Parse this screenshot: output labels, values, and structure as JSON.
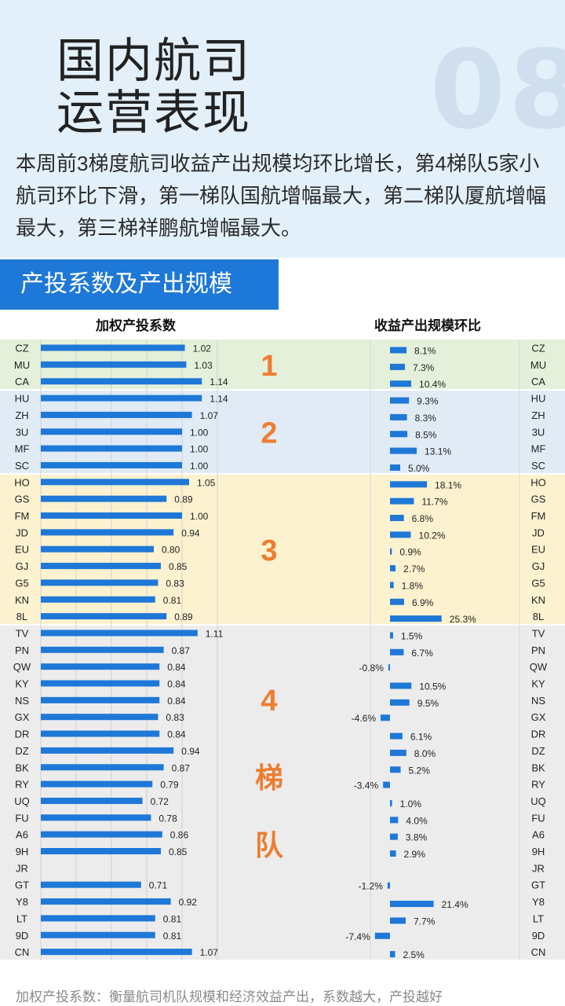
{
  "header": {
    "big_number": "08",
    "title_line1": "国内航司",
    "title_line2": "运营表现",
    "summary": "本周前3梯度航司收益产出规模均环比增长，第4梯队5家小航司环比下滑，第一梯队国航增幅最大，第二梯队厦航增幅最大，第三梯祥鹏航增幅最大。"
  },
  "section_title": "产投系数及产出规模",
  "footnote": "加权产投系数：衡量航司机队规模和经济效益产出，系数越大，产投越好",
  "colors": {
    "bar": "#1e78d7",
    "tier1_bg": "#e4f0d9",
    "tier2_bg": "#e0ebf6",
    "tier3_bg": "#fdf2d0",
    "tier4_bg": "#ececec",
    "tier_label": "#ee7d31"
  },
  "chart_data": [
    {
      "type": "bar",
      "title": "加权产投系数",
      "categories": [
        "CZ",
        "MU",
        "CA",
        "HU",
        "ZH",
        "3U",
        "MF",
        "SC",
        "HO",
        "GS",
        "FM",
        "JD",
        "EU",
        "GJ",
        "G5",
        "KN",
        "8L",
        "TV",
        "PN",
        "QW",
        "KY",
        "NS",
        "GX",
        "DR",
        "DZ",
        "BK",
        "RY",
        "UQ",
        "FU",
        "A6",
        "9H",
        "JR",
        "GT",
        "Y8",
        "LT",
        "9D",
        "CN"
      ],
      "values": [
        1.02,
        1.03,
        1.14,
        1.14,
        1.07,
        1.0,
        1.0,
        1.0,
        1.05,
        0.89,
        1.0,
        0.94,
        0.8,
        0.85,
        0.83,
        0.81,
        0.89,
        1.11,
        0.87,
        0.84,
        0.84,
        0.84,
        0.83,
        0.84,
        0.94,
        0.87,
        0.79,
        0.72,
        0.78,
        0.86,
        0.85,
        null,
        0.71,
        0.92,
        0.81,
        0.81,
        1.07
      ],
      "labels": [
        "1.02",
        "1.03",
        "1.14",
        "1.14",
        "1.07",
        "1.00",
        "1.00",
        "1.00",
        "1.05",
        "0.89",
        "1.00",
        "0.94",
        "0.80",
        "0.85",
        "0.83",
        "0.81",
        "0.89",
        "1.11",
        "0.87",
        "0.84",
        "0.84",
        "0.84",
        "0.83",
        "0.84",
        "0.94",
        "0.87",
        "0.79",
        "0.72",
        "0.78",
        "0.86",
        "0.85",
        "",
        "0.71",
        "0.92",
        "0.81",
        "0.81",
        "1.07"
      ],
      "xlim": [
        0,
        1.25
      ],
      "grid": true
    },
    {
      "type": "bar",
      "title": "收益产出规模环比",
      "categories": [
        "CZ",
        "MU",
        "CA",
        "HU",
        "ZH",
        "3U",
        "MF",
        "SC",
        "HO",
        "GS",
        "FM",
        "JD",
        "EU",
        "GJ",
        "G5",
        "KN",
        "8L",
        "TV",
        "PN",
        "QW",
        "KY",
        "NS",
        "GX",
        "DR",
        "DZ",
        "BK",
        "RY",
        "UQ",
        "FU",
        "A6",
        "9H",
        "JR",
        "GT",
        "Y8",
        "LT",
        "9D",
        "CN"
      ],
      "values": [
        8.1,
        7.3,
        10.4,
        9.3,
        8.3,
        8.5,
        13.1,
        5.0,
        18.1,
        11.7,
        6.8,
        10.2,
        0.9,
        2.7,
        1.8,
        6.9,
        25.3,
        1.5,
        6.7,
        -0.8,
        10.5,
        9.5,
        -4.6,
        6.1,
        8.0,
        5.2,
        -3.4,
        1.0,
        4.0,
        3.8,
        2.9,
        null,
        -1.2,
        21.4,
        7.7,
        -7.4,
        2.5
      ],
      "labels": [
        "8.1%",
        "7.3%",
        "10.4%",
        "9.3%",
        "8.3%",
        "8.5%",
        "13.1%",
        "5.0%",
        "18.1%",
        "11.7%",
        "6.8%",
        "10.2%",
        "0.9%",
        "2.7%",
        "1.8%",
        "6.9%",
        "25.3%",
        "1.5%",
        "6.7%",
        "-0.8%",
        "10.5%",
        "9.5%",
        "-4.6%",
        "6.1%",
        "8.0%",
        "5.2%",
        "-3.4%",
        "1.0%",
        "4.0%",
        "3.8%",
        "2.9%",
        "",
        "-1.2%",
        "21.4%",
        "7.7%",
        "-7.4%",
        "2.5%"
      ],
      "unit": "%"
    }
  ],
  "tiers": [
    {
      "label": "1",
      "start": 0,
      "end": 2
    },
    {
      "label": "2",
      "start": 3,
      "end": 7
    },
    {
      "label": "3",
      "start": 8,
      "end": 16
    },
    {
      "label": "4",
      "start": 17,
      "end": 36,
      "extra": [
        "梯",
        "队"
      ]
    }
  ]
}
